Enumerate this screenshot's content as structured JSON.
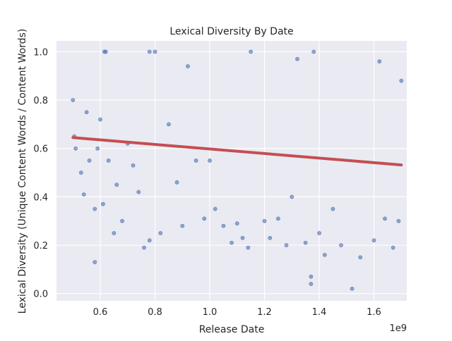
{
  "chart_data": {
    "type": "scatter",
    "title": "Lexical Diversity By Date",
    "xlabel": "Release Date",
    "ylabel": "Lexical Diversity (Unique Content Words / Content Words)",
    "x_offset_label": "1e9",
    "xlim": [
      0.44,
      1.72
    ],
    "ylim": [
      -0.03,
      1.045
    ],
    "x_unit_scale": 1000000000,
    "x_ticks": [
      0.6,
      0.8,
      1.0,
      1.2,
      1.4,
      1.6
    ],
    "x_tick_labels": [
      "0.6",
      "0.8",
      "1.0",
      "1.2",
      "1.4",
      "1.6"
    ],
    "y_ticks": [
      0.0,
      0.2,
      0.4,
      0.6,
      0.8,
      1.0
    ],
    "y_tick_labels": [
      "0.0",
      "0.2",
      "0.4",
      "0.6",
      "0.8",
      "1.0"
    ],
    "grid": true,
    "style": "seaborn darkgrid",
    "point_color": "#4c72b0",
    "line_color": "#c44e52",
    "regression_line": {
      "x": [
        0.5,
        1.7
      ],
      "y": [
        0.645,
        0.532
      ]
    },
    "series": [
      {
        "points": [
          [
            0.5,
            0.8
          ],
          [
            0.505,
            0.65
          ],
          [
            0.51,
            0.6
          ],
          [
            0.53,
            0.5
          ],
          [
            0.54,
            0.41
          ],
          [
            0.55,
            0.75
          ],
          [
            0.56,
            0.55
          ],
          [
            0.58,
            0.35
          ],
          [
            0.58,
            0.13
          ],
          [
            0.59,
            0.6
          ],
          [
            0.6,
            0.72
          ],
          [
            0.61,
            0.37
          ],
          [
            0.615,
            1.0
          ],
          [
            0.62,
            1.0
          ],
          [
            0.63,
            0.55
          ],
          [
            0.65,
            0.25
          ],
          [
            0.66,
            0.45
          ],
          [
            0.68,
            0.3
          ],
          [
            0.7,
            0.62
          ],
          [
            0.72,
            0.53
          ],
          [
            0.74,
            0.42
          ],
          [
            0.76,
            0.19
          ],
          [
            0.78,
            0.22
          ],
          [
            0.78,
            1.0
          ],
          [
            0.8,
            1.0
          ],
          [
            0.82,
            0.25
          ],
          [
            0.85,
            0.7
          ],
          [
            0.88,
            0.46
          ],
          [
            0.9,
            0.28
          ],
          [
            0.92,
            0.94
          ],
          [
            0.95,
            0.55
          ],
          [
            0.98,
            0.31
          ],
          [
            1.0,
            0.55
          ],
          [
            1.02,
            0.35
          ],
          [
            1.05,
            0.28
          ],
          [
            1.08,
            0.21
          ],
          [
            1.1,
            0.29
          ],
          [
            1.12,
            0.23
          ],
          [
            1.14,
            0.19
          ],
          [
            1.15,
            1.0
          ],
          [
            1.2,
            0.3
          ],
          [
            1.22,
            0.23
          ],
          [
            1.25,
            0.31
          ],
          [
            1.28,
            0.2
          ],
          [
            1.3,
            0.4
          ],
          [
            1.32,
            0.97
          ],
          [
            1.35,
            0.21
          ],
          [
            1.37,
            0.07
          ],
          [
            1.37,
            0.04
          ],
          [
            1.38,
            1.0
          ],
          [
            1.4,
            0.25
          ],
          [
            1.42,
            0.16
          ],
          [
            1.45,
            0.35
          ],
          [
            1.48,
            0.2
          ],
          [
            1.52,
            0.02
          ],
          [
            1.55,
            0.15
          ],
          [
            1.6,
            0.22
          ],
          [
            1.62,
            0.96
          ],
          [
            1.64,
            0.31
          ],
          [
            1.67,
            0.19
          ],
          [
            1.69,
            0.3
          ],
          [
            1.7,
            0.88
          ]
        ]
      }
    ]
  }
}
